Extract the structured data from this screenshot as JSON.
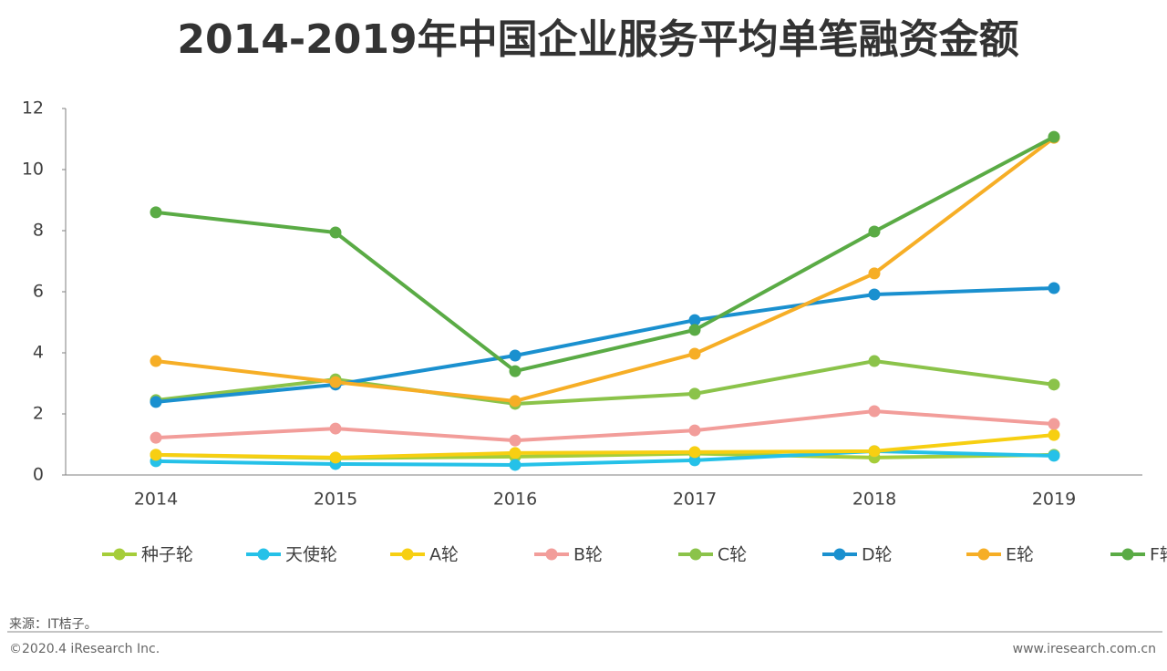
{
  "chart_data": {
    "type": "line",
    "title": "2014-2019年中国企业服务平均单笔融资金额",
    "categories": [
      "2014",
      "2015",
      "2016",
      "2017",
      "2018",
      "2019"
    ],
    "series": [
      {
        "name": "种子轮",
        "color": "#a5cd39",
        "values": [
          0.66,
          0.55,
          0.6,
          0.7,
          0.57,
          0.66
        ]
      },
      {
        "name": "天使轮",
        "color": "#25c1e8",
        "values": [
          0.45,
          0.36,
          0.33,
          0.48,
          0.78,
          0.63
        ]
      },
      {
        "name": "A轮",
        "color": "#f7cf12",
        "values": [
          0.66,
          0.57,
          0.72,
          0.75,
          0.78,
          1.31
        ]
      },
      {
        "name": "B轮",
        "color": "#f29d9a",
        "values": [
          1.22,
          1.52,
          1.13,
          1.46,
          2.09,
          1.67
        ]
      },
      {
        "name": "C轮",
        "color": "#8bc34a",
        "values": [
          2.45,
          3.13,
          2.33,
          2.66,
          3.73,
          2.96
        ]
      },
      {
        "name": "D轮",
        "color": "#1a90cf",
        "values": [
          2.39,
          2.96,
          3.91,
          5.07,
          5.91,
          6.12
        ]
      },
      {
        "name": "E轮",
        "color": "#f6ae26",
        "values": [
          3.73,
          3.04,
          2.42,
          3.97,
          6.6,
          11.04
        ]
      },
      {
        "name": "F轮",
        "color": "#5aab45",
        "values": [
          8.6,
          7.94,
          3.4,
          4.75,
          7.97,
          11.07
        ]
      }
    ],
    "ylim": [
      0,
      12
    ],
    "yticks": [
      0,
      2,
      4,
      6,
      8,
      10,
      12
    ],
    "source": "来源：IT桔子。",
    "copyright": "©2020.4 iResearch Inc.",
    "website": "www.iresearch.com.cn"
  }
}
